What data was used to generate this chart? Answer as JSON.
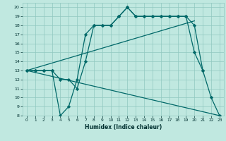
{
  "xlabel": "Humidex (Indice chaleur)",
  "bg_color": "#c0e8e0",
  "grid_color": "#90c8c0",
  "line_color": "#006868",
  "xlim": [
    -0.5,
    23.5
  ],
  "ylim": [
    8,
    20.5
  ],
  "xticks": [
    0,
    1,
    2,
    3,
    4,
    5,
    6,
    7,
    8,
    9,
    10,
    11,
    12,
    13,
    14,
    15,
    16,
    17,
    18,
    19,
    20,
    21,
    22,
    23
  ],
  "yticks": [
    8,
    9,
    10,
    11,
    12,
    13,
    14,
    15,
    16,
    17,
    18,
    19,
    20
  ],
  "series": [
    {
      "x": [
        0,
        1,
        2,
        3,
        4,
        5,
        6,
        7,
        8,
        9,
        10,
        11,
        12,
        13,
        14,
        15,
        16,
        17,
        18,
        19,
        20,
        21,
        22,
        23
      ],
      "y": [
        13,
        13,
        13,
        13,
        8,
        9,
        12,
        17,
        18,
        18,
        18,
        19,
        20,
        19,
        19,
        19,
        19,
        19,
        19,
        19,
        18,
        13,
        10,
        8
      ]
    },
    {
      "x": [
        0,
        1,
        2,
        3,
        4,
        5,
        6,
        7,
        8,
        9,
        10,
        11,
        12,
        13,
        14,
        15,
        16,
        17,
        18,
        19,
        20,
        21
      ],
      "y": [
        13,
        13,
        13,
        13,
        12,
        12,
        11,
        14,
        18,
        18,
        18,
        19,
        20,
        19,
        19,
        19,
        19,
        19,
        19,
        19,
        15,
        13
      ]
    },
    {
      "x": [
        0,
        20
      ],
      "y": [
        13,
        18.5
      ]
    },
    {
      "x": [
        0,
        23
      ],
      "y": [
        13,
        8
      ]
    }
  ]
}
